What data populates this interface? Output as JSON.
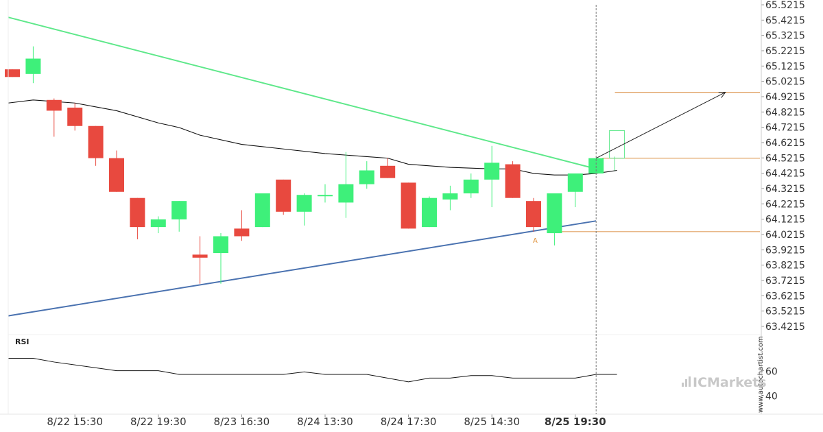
{
  "chart_data": {
    "type": "candlestick",
    "price_axis": {
      "ticks": [
        "65.5215",
        "65.4215",
        "65.3215",
        "65.2215",
        "65.1215",
        "65.0215",
        "64.9215",
        "64.8215",
        "64.7215",
        "64.6215",
        "64.5215",
        "64.4215",
        "64.3215",
        "64.2215",
        "64.1215",
        "64.0215",
        "63.9215",
        "63.8215",
        "63.7215",
        "63.6215",
        "63.5215",
        "63.4215"
      ],
      "range": [
        63.3715,
        65.5215
      ]
    },
    "time_labels": [
      {
        "label": "8/22 15:30",
        "bar": 3
      },
      {
        "label": "8/22 19:30",
        "bar": 7
      },
      {
        "label": "8/23 16:30",
        "bar": 11
      },
      {
        "label": "8/24 13:30",
        "bar": 15
      },
      {
        "label": "8/24 17:30",
        "bar": 19
      },
      {
        "label": "8/25 14:30",
        "bar": 23
      },
      {
        "label": "8/25 19:30",
        "bar": 27,
        "bold": true
      }
    ],
    "candles": [
      {
        "o": 65.1,
        "h": 65.1,
        "l": 65.05,
        "c": 65.05
      },
      {
        "o": 65.07,
        "h": 65.25,
        "l": 65.01,
        "c": 65.17
      },
      {
        "o": 64.9,
        "h": 64.91,
        "l": 64.66,
        "c": 64.83
      },
      {
        "o": 64.85,
        "h": 64.88,
        "l": 64.7,
        "c": 64.73
      },
      {
        "o": 64.73,
        "h": 64.73,
        "l": 64.47,
        "c": 64.52
      },
      {
        "o": 64.52,
        "h": 64.57,
        "l": 64.3,
        "c": 64.3
      },
      {
        "o": 64.26,
        "h": 64.26,
        "l": 63.99,
        "c": 64.07
      },
      {
        "o": 64.07,
        "h": 64.14,
        "l": 64.03,
        "c": 64.12
      },
      {
        "o": 64.12,
        "h": 64.24,
        "l": 64.04,
        "c": 64.24
      },
      {
        "o": 63.89,
        "h": 64.01,
        "l": 63.7,
        "c": 63.87
      },
      {
        "o": 63.9,
        "h": 64.03,
        "l": 63.7,
        "c": 64.01
      },
      {
        "o": 64.06,
        "h": 64.18,
        "l": 63.98,
        "c": 64.01
      },
      {
        "o": 64.07,
        "h": 64.29,
        "l": 64.07,
        "c": 64.29
      },
      {
        "o": 64.38,
        "h": 64.38,
        "l": 64.15,
        "c": 64.17
      },
      {
        "o": 64.17,
        "h": 64.29,
        "l": 64.08,
        "c": 64.28
      },
      {
        "o": 64.28,
        "h": 64.35,
        "l": 64.23,
        "c": 64.28
      },
      {
        "o": 64.23,
        "h": 64.56,
        "l": 64.13,
        "c": 64.35
      },
      {
        "o": 64.35,
        "h": 64.5,
        "l": 64.32,
        "c": 64.44
      },
      {
        "o": 64.47,
        "h": 64.52,
        "l": 64.39,
        "c": 64.39
      },
      {
        "o": 64.36,
        "h": 64.36,
        "l": 64.06,
        "c": 64.06
      },
      {
        "o": 64.07,
        "h": 64.27,
        "l": 64.07,
        "c": 64.26
      },
      {
        "o": 64.25,
        "h": 64.34,
        "l": 64.18,
        "c": 64.29
      },
      {
        "o": 64.29,
        "h": 64.42,
        "l": 64.26,
        "c": 64.38
      },
      {
        "o": 64.38,
        "h": 64.6,
        "l": 64.2,
        "c": 64.49
      },
      {
        "o": 64.48,
        "h": 64.5,
        "l": 64.26,
        "c": 64.26
      },
      {
        "o": 64.24,
        "h": 64.26,
        "l": 64.04,
        "c": 64.07
      },
      {
        "o": 64.03,
        "h": 64.29,
        "l": 63.95,
        "c": 64.29
      },
      {
        "o": 64.3,
        "h": 64.42,
        "l": 64.2,
        "c": 64.42
      },
      {
        "o": 64.42,
        "h": 64.52,
        "l": 64.42,
        "c": 64.52
      }
    ],
    "moving_average": [
      {
        "bar": -0.2,
        "v": 64.88
      },
      {
        "bar": 1,
        "v": 64.9
      },
      {
        "bar": 3,
        "v": 64.88
      },
      {
        "bar": 5,
        "v": 64.83
      },
      {
        "bar": 7,
        "v": 64.75
      },
      {
        "bar": 8,
        "v": 64.72
      },
      {
        "bar": 9,
        "v": 64.67
      },
      {
        "bar": 11,
        "v": 64.61
      },
      {
        "bar": 13,
        "v": 64.58
      },
      {
        "bar": 15,
        "v": 64.55
      },
      {
        "bar": 17,
        "v": 64.53
      },
      {
        "bar": 18,
        "v": 64.52
      },
      {
        "bar": 19,
        "v": 64.48
      },
      {
        "bar": 21,
        "v": 64.46
      },
      {
        "bar": 23,
        "v": 64.45
      },
      {
        "bar": 24,
        "v": 64.45
      },
      {
        "bar": 25,
        "v": 64.42
      },
      {
        "bar": 26,
        "v": 64.41
      },
      {
        "bar": 27,
        "v": 64.41
      },
      {
        "bar": 28,
        "v": 64.42
      },
      {
        "bar": 29,
        "v": 64.44
      }
    ],
    "pattern_lines": {
      "resistance": {
        "color": "#5ee88a",
        "from": {
          "bar": -0.2,
          "v": 65.44
        },
        "to": {
          "bar": 28,
          "v": 64.45
        }
      },
      "support": {
        "color": "#4a72b0",
        "from": {
          "bar": -0.2,
          "v": 63.49
        },
        "to": {
          "bar": 28,
          "v": 64.11
        }
      }
    },
    "levels": [
      {
        "v": 64.95,
        "from_bar": 28.9,
        "color": "#e0a060"
      },
      {
        "v": 64.52,
        "from_bar": 28.3,
        "color": "#e0a060"
      },
      {
        "v": 64.04,
        "from_bar": 25.8,
        "color": "#e0a060"
      }
    ],
    "forecast_arrow": {
      "from": {
        "bar": 28,
        "v": 64.52
      },
      "to": {
        "bar": 34.2,
        "v": 64.95
      },
      "color": "#222222"
    },
    "projection_box": {
      "bar": 29,
      "top": 64.7,
      "bottom": 64.52,
      "color": "#5ee88a"
    },
    "breakout_marker": {
      "bar": 28.3,
      "top": 64.53,
      "bottom": 64.44,
      "color": "#5ee88a"
    },
    "annotation": {
      "text": "A",
      "bar": 25.1,
      "v": 64.0
    },
    "current_time_bar": 28,
    "rsi": {
      "label": "RSI",
      "ticks": [
        "60",
        "40"
      ],
      "range": [
        26,
        88
      ],
      "points": [
        {
          "bar": -0.2,
          "v": 70
        },
        {
          "bar": 1,
          "v": 70
        },
        {
          "bar": 2,
          "v": 67
        },
        {
          "bar": 5,
          "v": 60
        },
        {
          "bar": 7,
          "v": 60
        },
        {
          "bar": 8,
          "v": 57
        },
        {
          "bar": 13,
          "v": 57
        },
        {
          "bar": 14,
          "v": 59
        },
        {
          "bar": 15,
          "v": 57
        },
        {
          "bar": 17,
          "v": 57
        },
        {
          "bar": 19,
          "v": 51
        },
        {
          "bar": 20,
          "v": 54
        },
        {
          "bar": 21,
          "v": 54
        },
        {
          "bar": 22,
          "v": 56
        },
        {
          "bar": 23,
          "v": 56
        },
        {
          "bar": 24,
          "v": 54
        },
        {
          "bar": 27,
          "v": 54
        },
        {
          "bar": 28,
          "v": 57
        },
        {
          "bar": 29,
          "v": 57
        }
      ]
    },
    "colors": {
      "up": "#3ef07a",
      "down": "#e8493f",
      "axis": "#dddddd",
      "grid": "#eeeeee"
    }
  },
  "watermark": "www.autochartist.com",
  "brand": {
    "prefix": "IC",
    "name": "Markets"
  }
}
